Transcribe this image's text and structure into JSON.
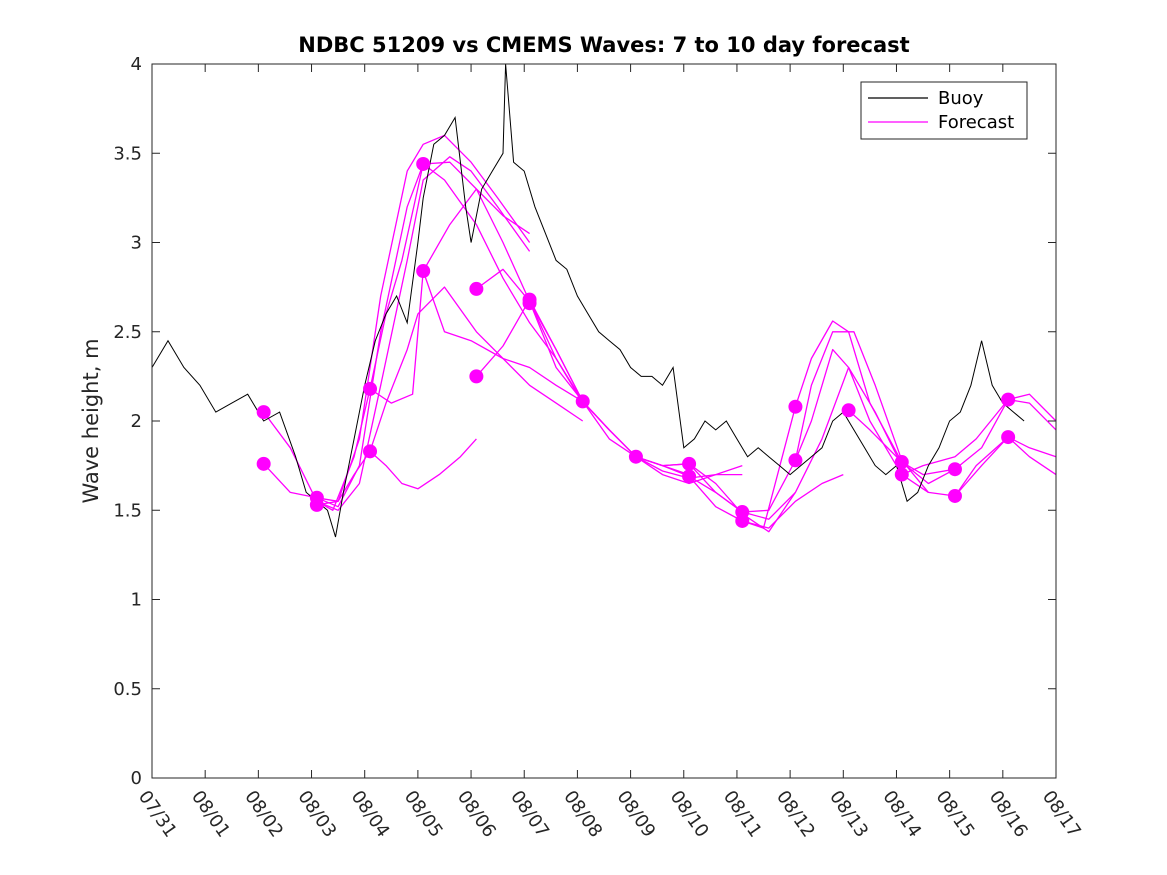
{
  "chart_data": {
    "type": "line",
    "title": "NDBC 51209 vs CMEMS Waves: 7 to 10 day forecast",
    "xlabel": "",
    "ylabel": "Wave height, m",
    "xlim": [
      0,
      17
    ],
    "ylim": [
      0,
      4
    ],
    "x_tick_values": [
      0,
      1,
      2,
      3,
      4,
      5,
      6,
      7,
      8,
      9,
      10,
      11,
      12,
      13,
      14,
      15,
      16,
      17
    ],
    "x_tick_labels": [
      "07/31",
      "08/01",
      "08/02",
      "08/03",
      "08/04",
      "08/05",
      "08/06",
      "08/07",
      "08/08",
      "08/09",
      "08/10",
      "08/11",
      "08/12",
      "08/13",
      "08/14",
      "08/15",
      "08/16",
      "08/17"
    ],
    "y_ticks": [
      0,
      0.5,
      1,
      1.5,
      2,
      2.5,
      3,
      3.5,
      4
    ],
    "y_tick_labels": [
      "0",
      "0.5",
      "1",
      "1.5",
      "2",
      "2.5",
      "3",
      "3.5",
      "4"
    ],
    "grid": false,
    "legend": {
      "placement": "top-right",
      "entries": [
        {
          "label": "Buoy",
          "color": "#000000"
        },
        {
          "label": "Forecast",
          "color": "#ff00ff"
        }
      ]
    },
    "buoy_series": {
      "name": "Buoy",
      "color": "#000000",
      "x": [
        0,
        0.3,
        0.6,
        0.9,
        1.2,
        1.5,
        1.8,
        2.1,
        2.4,
        2.7,
        2.9,
        3.1,
        3.3,
        3.45,
        3.6,
        3.8,
        4.0,
        4.2,
        4.4,
        4.6,
        4.8,
        5.0,
        5.1,
        5.2,
        5.3,
        5.5,
        5.7,
        5.9,
        6.0,
        6.2,
        6.4,
        6.6,
        6.65,
        6.8,
        7.0,
        7.2,
        7.4,
        7.6,
        7.8,
        8.0,
        8.2,
        8.4,
        8.6,
        8.8,
        9.0,
        9.2,
        9.4,
        9.6,
        9.8,
        10.0,
        10.2,
        10.4,
        10.6,
        10.8,
        11.0,
        11.2,
        11.4,
        11.6,
        11.8,
        12.0,
        12.2,
        12.4,
        12.6,
        12.8,
        13.0,
        13.2,
        13.4,
        13.6,
        13.8,
        14.0,
        14.2,
        14.4,
        14.6,
        14.8,
        15.0,
        15.2,
        15.4,
        15.6,
        15.8,
        16.0,
        16.2,
        16.4
      ],
      "values": [
        2.3,
        2.45,
        2.3,
        2.2,
        2.05,
        2.1,
        2.15,
        2.0,
        2.05,
        1.8,
        1.6,
        1.55,
        1.5,
        1.35,
        1.6,
        1.9,
        2.2,
        2.45,
        2.6,
        2.7,
        2.55,
        3.0,
        3.25,
        3.4,
        3.55,
        3.6,
        3.7,
        3.2,
        3.0,
        3.3,
        3.4,
        3.5,
        4.0,
        3.45,
        3.4,
        3.2,
        3.05,
        2.9,
        2.85,
        2.7,
        2.6,
        2.5,
        2.45,
        2.4,
        2.3,
        2.25,
        2.25,
        2.2,
        2.3,
        1.85,
        1.9,
        2.0,
        1.95,
        2.0,
        1.9,
        1.8,
        1.85,
        1.8,
        1.75,
        1.7,
        1.75,
        1.8,
        1.85,
        2.0,
        2.05,
        1.95,
        1.85,
        1.75,
        1.7,
        1.75,
        1.55,
        1.6,
        1.75,
        1.85,
        2.0,
        2.05,
        2.2,
        2.45,
        2.2,
        2.1,
        2.05,
        2.0
      ]
    },
    "forecast_series": [
      {
        "name": "Forecast",
        "x": [
          2.1,
          2.6,
          3.1,
          3.4,
          3.8,
          4.1
        ],
        "values": [
          2.05,
          1.85,
          1.55,
          1.5,
          1.8,
          2.18
        ]
      },
      {
        "name": "Forecast",
        "x": [
          2.1,
          2.6,
          3.1,
          3.5,
          3.8,
          4.1
        ],
        "values": [
          1.76,
          1.6,
          1.57,
          1.55,
          1.7,
          1.83
        ]
      },
      {
        "name": "Forecast",
        "x": [
          3.1,
          3.5,
          3.9,
          4.3,
          4.8,
          5.1,
          5.6,
          6.1,
          6.6,
          7.1
        ],
        "values": [
          1.57,
          1.52,
          1.75,
          2.5,
          3.2,
          3.44,
          3.45,
          3.3,
          3.15,
          3.05
        ]
      },
      {
        "name": "Forecast",
        "x": [
          3.1,
          3.5,
          3.9,
          4.3,
          4.8,
          5.1,
          5.5,
          6.0,
          6.5,
          7.1
        ],
        "values": [
          1.53,
          1.55,
          1.9,
          2.7,
          3.4,
          3.55,
          3.6,
          3.45,
          3.25,
          3.0
        ]
      },
      {
        "name": "Forecast",
        "x": [
          3.1,
          3.5,
          3.9,
          4.3,
          4.8,
          5.1,
          5.6,
          6.0,
          6.5,
          7.1
        ],
        "values": [
          1.55,
          1.5,
          1.65,
          2.2,
          2.9,
          3.35,
          3.48,
          3.4,
          3.2,
          2.95
        ]
      },
      {
        "name": "Forecast",
        "x": [
          4.1,
          4.4,
          4.7,
          5.1,
          5.5,
          6.1,
          6.6,
          7.1,
          7.6,
          8.1
        ],
        "values": [
          2.18,
          2.6,
          2.9,
          3.44,
          3.35,
          3.1,
          2.8,
          2.55,
          2.35,
          2.1
        ]
      },
      {
        "name": "Forecast",
        "x": [
          4.1,
          4.4,
          4.8,
          5.0,
          5.5,
          6.1,
          6.6,
          7.1,
          7.6,
          8.1
        ],
        "values": [
          1.83,
          2.1,
          2.4,
          2.6,
          2.75,
          2.5,
          2.35,
          2.2,
          2.1,
          2.0
        ]
      },
      {
        "name": "Forecast",
        "x": [
          4.1,
          4.5,
          4.9,
          5.1,
          5.5,
          6.0,
          6.6,
          7.1,
          7.6,
          8.1
        ],
        "values": [
          2.18,
          2.1,
          2.15,
          2.84,
          2.5,
          2.45,
          2.35,
          2.3,
          2.2,
          2.11
        ]
      },
      {
        "name": "Forecast",
        "x": [
          4.1,
          4.4,
          4.7,
          5.0,
          5.4,
          5.8,
          6.1
        ],
        "values": [
          1.83,
          1.75,
          1.65,
          1.62,
          1.7,
          1.8,
          1.9
        ]
      },
      {
        "name": "Forecast",
        "x": [
          5.1,
          5.6,
          6.1,
          6.6,
          7.1,
          7.6,
          8.1,
          8.6,
          9.1,
          9.6,
          10.1
        ],
        "values": [
          2.84,
          3.1,
          3.3,
          3.0,
          2.67,
          2.3,
          2.11,
          1.95,
          1.8,
          1.75,
          1.7
        ]
      },
      {
        "name": "Forecast",
        "x": [
          6.1,
          6.6,
          7.1,
          7.6,
          8.1,
          8.6,
          9.1,
          9.6,
          10.1,
          10.6,
          11.1
        ],
        "values": [
          2.74,
          2.85,
          2.67,
          2.35,
          2.11,
          1.95,
          1.8,
          1.72,
          1.68,
          1.7,
          1.75
        ]
      },
      {
        "name": "Forecast",
        "x": [
          6.1,
          6.6,
          7.1,
          7.6,
          8.1,
          8.6,
          9.1,
          9.6,
          10.1,
          10.6,
          11.1
        ],
        "values": [
          2.25,
          2.42,
          2.68,
          2.4,
          2.11,
          1.9,
          1.8,
          1.7,
          1.65,
          1.7,
          1.7
        ]
      },
      {
        "name": "Forecast",
        "x": [
          7.1,
          7.6,
          8.1,
          8.6,
          9.1,
          9.6,
          10.1,
          10.6,
          11.1,
          11.6,
          12.1
        ],
        "values": [
          2.67,
          2.4,
          2.11,
          1.95,
          1.8,
          1.75,
          1.76,
          1.6,
          1.49,
          1.45,
          1.6
        ]
      },
      {
        "name": "Forecast",
        "x": [
          8.1,
          8.6,
          9.1,
          9.6,
          10.1,
          10.6,
          11.1,
          11.6,
          12.1,
          12.6,
          13.0
        ],
        "values": [
          2.11,
          1.95,
          1.8,
          1.75,
          1.69,
          1.52,
          1.44,
          1.4,
          1.55,
          1.65,
          1.7
        ]
      },
      {
        "name": "Forecast",
        "x": [
          9.1,
          9.6,
          10.1,
          10.6,
          11.1,
          11.6,
          12.1,
          12.6,
          13.1,
          13.6,
          14.1
        ],
        "values": [
          1.8,
          1.75,
          1.76,
          1.65,
          1.48,
          1.38,
          1.6,
          1.9,
          2.3,
          2.05,
          1.75
        ]
      },
      {
        "name": "Forecast",
        "x": [
          10.1,
          10.6,
          11.1,
          11.6,
          12.1,
          12.4,
          12.8,
          13.2,
          13.6,
          14.1,
          14.6
        ],
        "values": [
          1.69,
          1.6,
          1.49,
          1.5,
          1.78,
          2.2,
          2.5,
          2.5,
          2.2,
          1.78,
          1.6
        ]
      },
      {
        "name": "Forecast",
        "x": [
          11.1,
          11.5,
          12.1,
          12.4,
          12.8,
          13.1,
          13.5,
          14.1,
          14.6,
          15.1
        ],
        "values": [
          1.44,
          1.4,
          2.08,
          2.35,
          2.56,
          2.5,
          2.1,
          1.77,
          1.65,
          1.73
        ]
      },
      {
        "name": "Forecast",
        "x": [
          12.1,
          12.4,
          12.8,
          13.1,
          13.5,
          14.1,
          14.6,
          15.1,
          15.6,
          16.1
        ],
        "values": [
          1.78,
          2.0,
          2.4,
          2.3,
          2.0,
          1.7,
          1.6,
          1.58,
          1.75,
          1.91
        ]
      },
      {
        "name": "Forecast",
        "x": [
          13.1,
          13.5,
          14.1,
          14.5,
          15.1,
          15.6,
          16.1,
          16.5,
          17.0
        ],
        "values": [
          2.06,
          1.95,
          1.77,
          1.7,
          1.73,
          1.85,
          2.12,
          2.1,
          1.95
        ]
      },
      {
        "name": "Forecast",
        "x": [
          14.1,
          14.5,
          15.1,
          15.5,
          16.1,
          16.5,
          17.0
        ],
        "values": [
          1.7,
          1.75,
          1.8,
          1.9,
          2.12,
          2.15,
          2.0
        ]
      },
      {
        "name": "Forecast",
        "x": [
          15.1,
          15.5,
          16.1,
          16.5,
          17.0
        ],
        "values": [
          1.58,
          1.75,
          1.91,
          1.85,
          1.8
        ]
      },
      {
        "name": "Forecast",
        "x": [
          16.1,
          16.5,
          17.0
        ],
        "values": [
          1.91,
          1.8,
          1.7
        ]
      }
    ],
    "forecast_markers": {
      "x": [
        2.1,
        2.1,
        3.1,
        3.1,
        4.1,
        4.1,
        5.1,
        5.1,
        6.1,
        6.1,
        7.1,
        7.1,
        8.1,
        9.1,
        10.1,
        10.1,
        11.1,
        11.1,
        12.1,
        12.1,
        13.1,
        14.1,
        14.1,
        15.1,
        15.1,
        16.1,
        16.1
      ],
      "values": [
        2.05,
        1.76,
        1.57,
        1.53,
        2.18,
        1.83,
        3.44,
        2.84,
        2.74,
        2.25,
        2.68,
        2.66,
        2.11,
        1.8,
        1.76,
        1.69,
        1.49,
        1.44,
        2.08,
        1.78,
        2.06,
        1.77,
        1.7,
        1.73,
        1.58,
        2.12,
        1.91
      ]
    }
  }
}
